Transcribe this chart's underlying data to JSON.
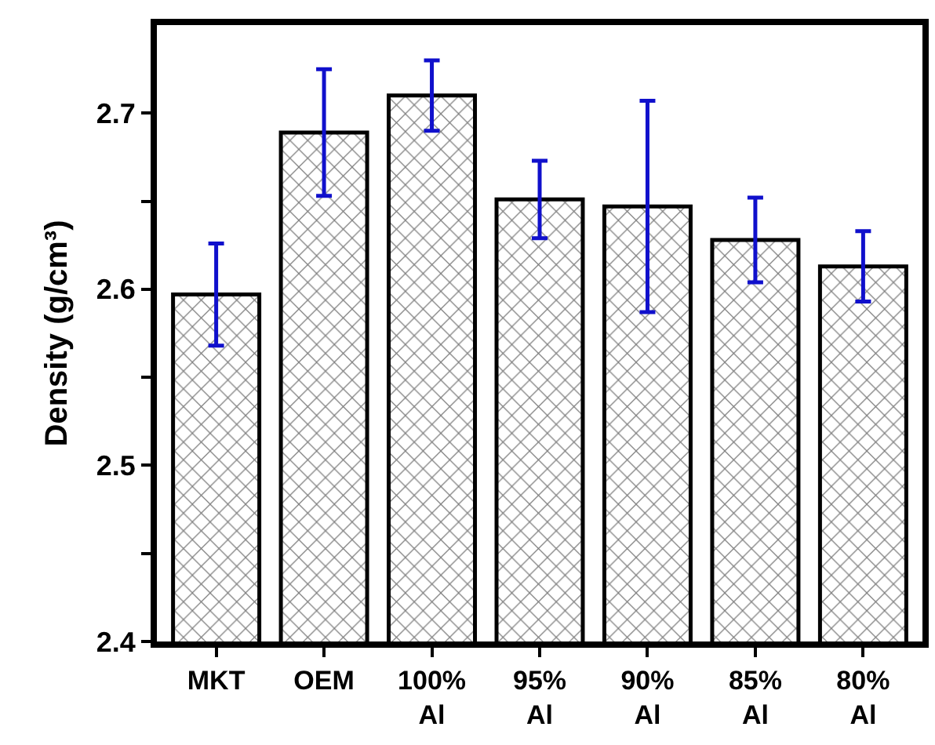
{
  "chart_data": {
    "type": "bar",
    "ylabel": "Density (g/cm³)",
    "categories": [
      "MKT",
      "OEM",
      "100% Al",
      "95% Al",
      "90% Al",
      "85% Al",
      "80% Al"
    ],
    "values": [
      2.597,
      2.689,
      2.71,
      2.651,
      2.647,
      2.628,
      2.613
    ],
    "errors": [
      0.029,
      0.036,
      0.02,
      0.022,
      0.06,
      0.024,
      0.02
    ],
    "color": "#000000",
    "ylim": [
      2.4,
      2.75
    ],
    "yticks": [
      2.4,
      {
        "value": 2.45,
        "label": null
      },
      2.5,
      {
        "value": 2.55,
        "label": null
      },
      2.6,
      {
        "value": 2.65,
        "label": null
      },
      2.7
    ],
    "legend": false
  }
}
